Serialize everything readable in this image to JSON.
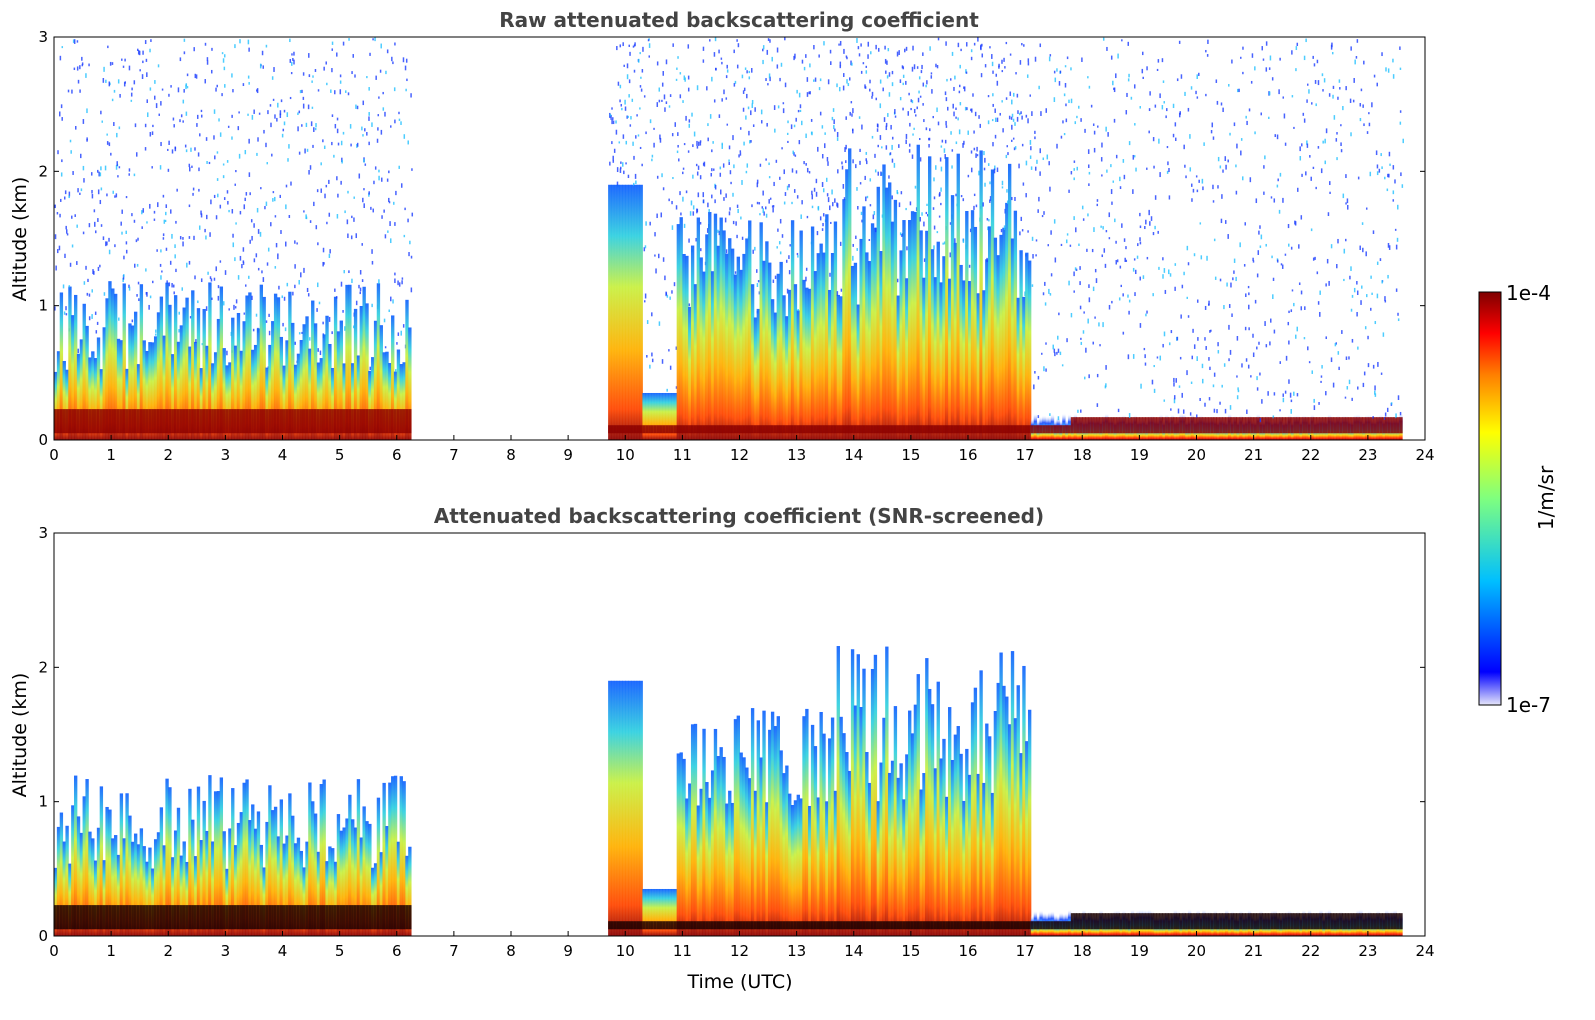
{
  "chart_data": [
    {
      "type": "heatmap",
      "title": "Raw attenuated backscattering coefficient",
      "xlabel": "",
      "ylabel": "Altitude (km)",
      "xlim": [
        0,
        24
      ],
      "ylim": [
        0,
        3
      ],
      "x_ticks": [
        "0",
        "1",
        "2",
        "3",
        "4",
        "5",
        "6",
        "7",
        "8",
        "9",
        "10",
        "11",
        "12",
        "13",
        "14",
        "15",
        "16",
        "17",
        "18",
        "19",
        "20",
        "21",
        "22",
        "23",
        "24"
      ],
      "y_ticks": [
        "0",
        "1",
        "2",
        "3"
      ],
      "data_segments_hours": [
        [
          0,
          6.2
        ],
        [
          9.7,
          23.6
        ]
      ],
      "color_scale": "log",
      "screened": false
    },
    {
      "type": "heatmap",
      "title": "Attenuated backscattering coefficient (SNR-screened)",
      "xlabel": "Time (UTC)",
      "ylabel": "Altitude (km)",
      "xlim": [
        0,
        24
      ],
      "ylim": [
        0,
        3
      ],
      "x_ticks": [
        "0",
        "1",
        "2",
        "3",
        "4",
        "5",
        "6",
        "7",
        "8",
        "9",
        "10",
        "11",
        "12",
        "13",
        "14",
        "15",
        "16",
        "17",
        "18",
        "19",
        "20",
        "21",
        "22",
        "23",
        "24"
      ],
      "y_ticks": [
        "0",
        "1",
        "2",
        "3"
      ],
      "data_segments_hours": [
        [
          0,
          6.2
        ],
        [
          9.7,
          23.6
        ]
      ],
      "color_scale": "log",
      "screened": true
    }
  ],
  "colorbar": {
    "label": "1/m/sr",
    "max_label": "1e-4",
    "min_label": "1e-7",
    "colormap": "jet",
    "colors": [
      "#e6e6fa",
      "#0000ff",
      "#00bfff",
      "#7fff7f",
      "#ffff00",
      "#ff7f00",
      "#ff0000",
      "#7f0000"
    ]
  }
}
